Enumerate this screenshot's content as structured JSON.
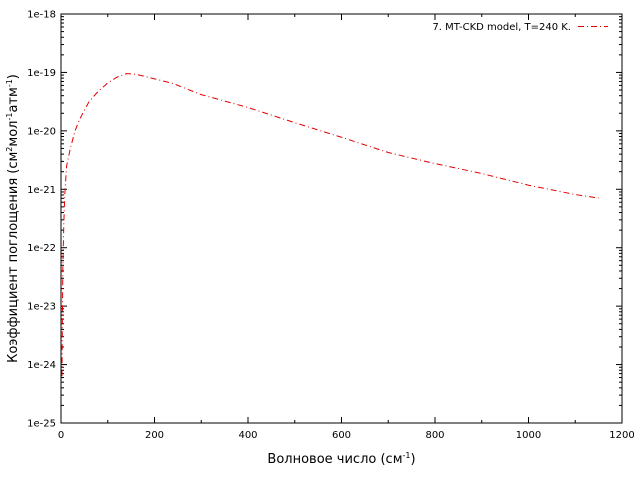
{
  "chart_data": {
    "type": "line",
    "xlabel": "Волновое число (см",
    "xlabel_sup": "-1",
    "xlabel_end": ")",
    "ylabel_parts": [
      "Коэффициент поглощения (см",
      "2",
      "мол",
      "-1",
      "атм",
      "-1",
      ")"
    ],
    "xlim": [
      0,
      1200
    ],
    "x_ticks": [
      0,
      200,
      400,
      600,
      800,
      1000,
      1200
    ],
    "y_scale": "log",
    "ylim_exp": [
      -25,
      -18
    ],
    "y_tick_labels": [
      "1e-25",
      "1e-24",
      "1e-23",
      "1e-22",
      "1e-21",
      "1e-20",
      "1e-19",
      "1e-18"
    ],
    "legend_position": "top-right",
    "grid": false,
    "series": [
      {
        "name": "7. MT-CKD model, T=240 K.",
        "color": "#e00000",
        "line_style": "dash-dot",
        "x": [
          2,
          3,
          4,
          6,
          8,
          12,
          16,
          20,
          30,
          40,
          60,
          80,
          100,
          120,
          140,
          160,
          180,
          200,
          240,
          300,
          400,
          500,
          600,
          700,
          800,
          900,
          1000,
          1100,
          1150
        ],
        "log10_y": [
          -24.2,
          -23.2,
          -22.3,
          -21.6,
          -21.1,
          -20.6,
          -20.45,
          -20.3,
          -20.0,
          -19.8,
          -19.5,
          -19.32,
          -19.18,
          -19.08,
          -19.02,
          -19.03,
          -19.07,
          -19.11,
          -19.19,
          -19.38,
          -19.6,
          -19.86,
          -20.11,
          -20.37,
          -20.56,
          -20.73,
          -20.93,
          -21.09,
          -21.15
        ]
      }
    ]
  }
}
